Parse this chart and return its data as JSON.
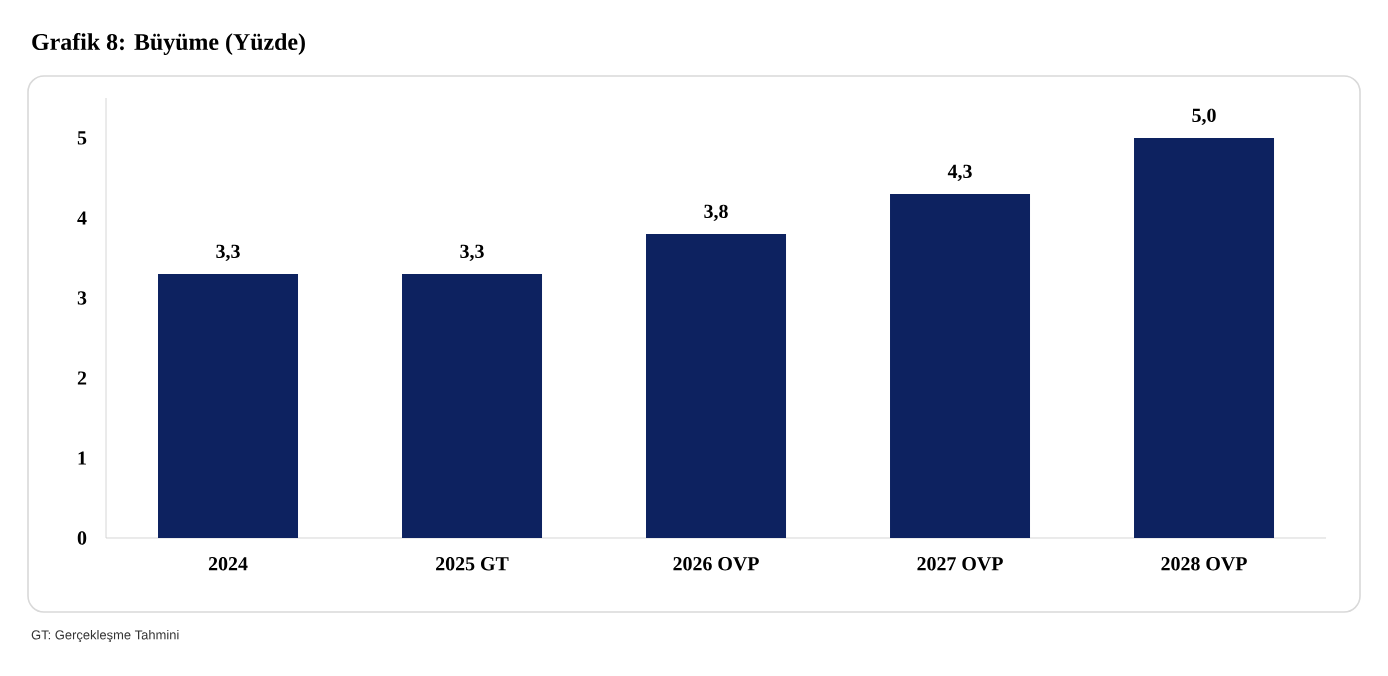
{
  "chart_data": {
    "type": "bar",
    "title": "Grafik 8: Büyüme (Yüzde)",
    "categories": [
      "2024",
      "2025 GT",
      "2026 OVP",
      "2027 OVP",
      "2028 OVP"
    ],
    "values": [
      3.3,
      3.3,
      3.8,
      4.3,
      5.0
    ],
    "value_labels": [
      "3,3",
      "3,3",
      "3,8",
      "4,3",
      "5,0"
    ],
    "color": "#0d2260",
    "ylim": [
      0,
      5.5
    ],
    "yticks": [
      0,
      1,
      2,
      3,
      4,
      5
    ],
    "grid": false,
    "annotations": [
      "GT: Gerçekleşme Tahmini"
    ]
  }
}
